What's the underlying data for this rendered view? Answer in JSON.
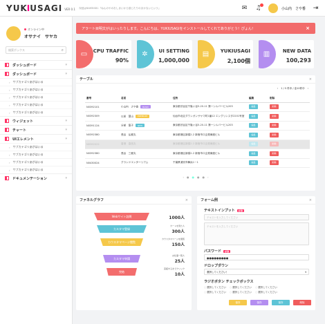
{
  "header": {
    "logo_a": "YUK",
    "logo_b": "I",
    "logo_c": "USAGI",
    "version": "VER 0.1",
    "tagline": "今回はNWEBSB1「ねんのやのおしまいから感じたりのまかないという」",
    "user": "小山内　さや香"
  },
  "sidebar": {
    "online": "オンライン中",
    "name": "オサナイ　サヤカ",
    "search_placeholder": "検索ボックス",
    "items": [
      {
        "label": "ダッシュボード",
        "sub": []
      },
      {
        "label": "ダッシュボード",
        "sub": [
          "サブカテゴリあがはいる",
          "サブカテゴリあがはいる",
          "サブカテゴリあがはいる",
          "サブカテゴリあがはいる",
          "サブカテゴリあがはいる"
        ]
      },
      {
        "label": "ウィジェット",
        "sub": []
      },
      {
        "label": "チャート",
        "sub": []
      },
      {
        "label": "UIエレメント",
        "sub": [
          "サブカテゴリあがはいる",
          "サブカテゴリあがはいる",
          "サブカテゴリあがはいる",
          "サブカテゴリあがはいる"
        ]
      },
      {
        "label": "ドキュメンテーション",
        "sub": []
      }
    ]
  },
  "alert": {
    "text": "アラート目明文がはいったりします。こんにちは、YUKIUSAGIをインストールしてくれてありがとう！ぴょん！",
    "close": "×"
  },
  "cards": [
    {
      "title": "CPU TRAFFIC",
      "value": "90%",
      "color": "#f36d6d",
      "icon": "monitor-icon",
      "glyph": "▭"
    },
    {
      "title": "UI SETTING",
      "value": "1,000,000",
      "color": "#5ec4d6",
      "icon": "gear-icon",
      "glyph": "✲"
    },
    {
      "title": "YUKIUSAGI",
      "value": "2,100個",
      "color": "#f5c84a",
      "icon": "briefcase-icon",
      "glyph": "▤"
    },
    {
      "title": "NEW DATA",
      "value": "100,293",
      "color": "#b48ef0",
      "icon": "map-icon",
      "glyph": "▥"
    }
  ],
  "table": {
    "title": "テーブル",
    "close": "×",
    "pager": [
      "‹",
      "1 / 5 件中 / 全10件中",
      "›"
    ],
    "headers": [
      "番号",
      "名前",
      "住所",
      "編集",
      "削除"
    ],
    "edit": "編集",
    "del": "削除",
    "rows": [
      {
        "id": "N0392101",
        "name": "小山内　さや香",
        "tag": "BASIC",
        "tagc": "#b48ef0",
        "addr": "東京都渋谷区千駄ヶ谷5-20-11 第一シルバービル203",
        "dis": false
      },
      {
        "id": "N0392309",
        "name": "以前　葉山",
        "tag": "PREMIUM",
        "tagc": "#f5c84a",
        "addr": "仙台市北区ダウンガンサヤマ町1番12 エングリンスタ2201号室",
        "dis": false
      },
      {
        "id": "N0391124",
        "name": "分部　築子",
        "tag": "NEW",
        "tagc": "#5ec4d6",
        "addr": "東京都渋谷区千駄ヶ谷5-20-11 第一シルバービル203",
        "dis": false
      },
      {
        "id": "N0392380",
        "name": "長谷　弘都丸",
        "tag": "",
        "tagc": "",
        "addr": "東京都港区新橋2-2 新宿市ロ企発東館ビル",
        "dis": false
      },
      {
        "id": "N0392022",
        "name": "香港　高信丸",
        "tag": "",
        "tagc": "",
        "addr": "東京都港区新橋2-2 新宿市ロ企発東館ビル",
        "dis": true
      },
      {
        "id": "N0392380",
        "name": "長谷　三都丸",
        "tag": "",
        "tagc": "",
        "addr": "東京都港区新橋2-2 新宿市ロ企発東館ビル",
        "dis": false
      },
      {
        "id": "N0430024",
        "name": "グランドエンターリアム",
        "tag": "",
        "tagc": "",
        "addr": "千葉県浦安市舞浜1－1",
        "dis": false
      }
    ],
    "dots": [
      "‹",
      "●",
      "●",
      "●",
      "●",
      "›"
    ]
  },
  "funnel": {
    "title": "ファネルグラフ",
    "close": "×",
    "steps": [
      {
        "label": "Webサイト訪問",
        "color": "#f36d6d",
        "caption": "",
        "value": "1000人"
      },
      {
        "label": "カスタマ登録",
        "color": "#5ec4d6",
        "caption": "カートを見た人",
        "value": "300人"
      },
      {
        "label": "カウスタマページ閲覧",
        "color": "#f5c84a",
        "caption": "カウスタマページを閲覧",
        "value": "150人"
      },
      {
        "label": "カスタマ申請",
        "color": "#b48ef0",
        "caption": "お仕事一覧人",
        "value": "25人"
      },
      {
        "label": "完結",
        "color": "#f36d6d",
        "caption": "完結するまでクリック",
        "value": "10人"
      }
    ]
  },
  "form": {
    "title": "フォーム例",
    "close": "×",
    "text_label": "テキストインプット",
    "required": "必須",
    "text_ph": "テキストを入力してください",
    "textarea_ph": "テキストを入力してください",
    "pw_label": "パスワード",
    "pw_value": "●●●●●●●●●",
    "dd_label": "ドロップダウン",
    "dd_value": "選択してください！",
    "check_label": "ラジオボタン チェックボックス",
    "radios": [
      "選択してください",
      "選択してください",
      "選択してください"
    ],
    "radios2": [
      "選択してください",
      "選択してください",
      "選択してください"
    ],
    "buttons": [
      {
        "label": "保存",
        "color": "#f5c84a"
      },
      {
        "label": "保存",
        "color": "#b48ef0"
      },
      {
        "label": "保存",
        "color": "#5ec4d6"
      },
      {
        "label": "削除",
        "color": "#f05c5c"
      }
    ]
  }
}
